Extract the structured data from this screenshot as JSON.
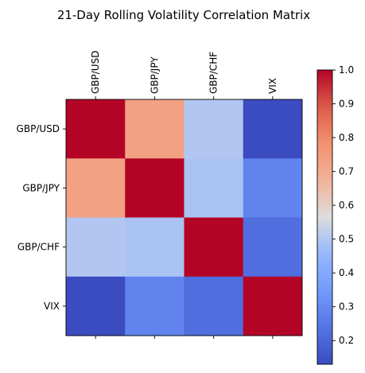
{
  "chart_data": {
    "type": "heatmap",
    "title": "21-Day Rolling Volatility Correlation Matrix",
    "rows": [
      "GBP/USD",
      "GBP/JPY",
      "GBP/CHF",
      "VIX"
    ],
    "columns": [
      "GBP/USD",
      "GBP/JPY",
      "GBP/CHF",
      "VIX"
    ],
    "values": [
      [
        1.0,
        0.73,
        0.5,
        0.13
      ],
      [
        0.73,
        1.0,
        0.49,
        0.28
      ],
      [
        0.5,
        0.49,
        1.0,
        0.22
      ],
      [
        0.13,
        0.28,
        0.22,
        1.0
      ]
    ],
    "colormap": "coolwarm",
    "colorbar": {
      "min": 0.13,
      "max": 1.0,
      "ticks": [
        "0.2",
        "0.3",
        "0.4",
        "0.5",
        "0.6",
        "0.7",
        "0.8",
        "0.9",
        "1.0"
      ]
    },
    "x_tick_position": "top",
    "grid": false
  }
}
